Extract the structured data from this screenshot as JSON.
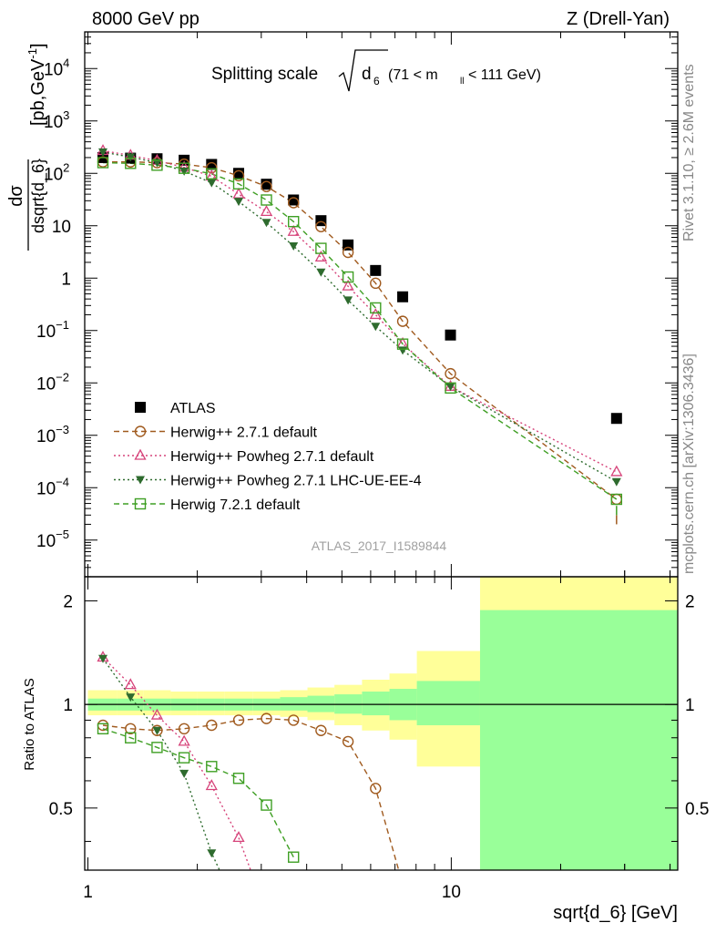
{
  "header": {
    "left": "8000 GeV pp",
    "right": "Z (Drell-Yan)"
  },
  "side": {
    "rivet": "Rivet 3.1.10, ≥ 2.6M events",
    "mcplots": "mcplots.cern.ch [arXiv:1306.3436]"
  },
  "chart_data": [
    {
      "type": "scatter",
      "panel": "main",
      "title_main": "Splitting scale",
      "title_var": "d",
      "title_sub": "6",
      "title_cut": "(71 < m",
      "title_cut_sub": "ll",
      "title_cut_end": " < 111 GeV)",
      "ylabel_num": "dσ",
      "ylabel_den": "dsqrt{d_6}",
      "ylabel_unit": "[pb,GeV",
      "ylabel_exp": "-1",
      "ylabel_end": "]",
      "analysis_id": "ATLAS_2017_I1589844",
      "x_scale": "log",
      "y_scale": "log",
      "xlim": [
        0.98,
        42
      ],
      "ylim_exp": [
        -5.7,
        4.7
      ],
      "y_ticks": [
        {
          "mant": "10",
          "exp": "4",
          "v": 4
        },
        {
          "mant": "10",
          "exp": "3",
          "v": 3
        },
        {
          "mant": "10",
          "exp": "2",
          "v": 2
        },
        {
          "mant": "10",
          "exp": "",
          "v": 1
        },
        {
          "mant": "1",
          "exp": "",
          "v": 0
        },
        {
          "mant": "10",
          "exp": "−1",
          "v": -1
        },
        {
          "mant": "10",
          "exp": "−2",
          "v": -2
        },
        {
          "mant": "10",
          "exp": "−3",
          "v": -3
        },
        {
          "mant": "10",
          "exp": "−4",
          "v": -4
        },
        {
          "mant": "10",
          "exp": "−5",
          "v": -5
        }
      ],
      "legend_position": "bottom-left",
      "series": [
        {
          "name": "ATLAS",
          "marker": "square-filled",
          "color": "#000000",
          "x": [
            1.1,
            1.31,
            1.55,
            1.84,
            2.19,
            2.6,
            3.1,
            3.68,
            4.38,
            5.2,
            6.19,
            7.35,
            9.95,
            28.5
          ],
          "y": [
            200,
            195,
            190,
            178,
            148,
            100,
            62,
            31,
            12.5,
            4.3,
            1.4,
            0.44,
            0.082,
            0.0021
          ]
        },
        {
          "name": "Herwig++ 2.7.1 default",
          "marker": "circle-open",
          "line": "dashed",
          "color": "#a05a1e",
          "x": [
            1.1,
            1.31,
            1.55,
            1.84,
            2.19,
            2.6,
            3.1,
            3.68,
            4.38,
            5.2,
            6.19,
            7.35,
            9.95,
            28.5
          ],
          "y": [
            165,
            165,
            160,
            150,
            128,
            90,
            56,
            27.5,
            9.6,
            3.1,
            0.8,
            0.15,
            0.015,
            6e-05
          ]
        },
        {
          "name": "Herwig++ Powheg 2.7.1 default",
          "marker": "triangle-up-open",
          "line": "dotted",
          "color": "#d6437a",
          "x": [
            1.1,
            1.31,
            1.55,
            1.84,
            2.19,
            2.6,
            3.1,
            3.68,
            4.38,
            5.2,
            6.19,
            7.35,
            9.95,
            28.5
          ],
          "y": [
            270,
            220,
            175,
            130,
            88,
            40,
            18.5,
            7.7,
            2.5,
            0.7,
            0.2,
            0.056,
            0.0085,
            0.0002
          ]
        },
        {
          "name": "Herwig++ Powheg 2.7.1 LHC-UE-EE-4",
          "marker": "triangle-down-filled",
          "line": "dotted",
          "color": "#2e6b2e",
          "x": [
            1.1,
            1.31,
            1.55,
            1.84,
            2.19,
            2.6,
            3.1,
            3.68,
            4.38,
            5.2,
            6.19,
            7.35,
            9.95,
            28.5
          ],
          "y": [
            255,
            205,
            160,
            110,
            66,
            29,
            11.5,
            4.1,
            1.3,
            0.38,
            0.12,
            0.042,
            0.0085,
            0.00013
          ]
        },
        {
          "name": "Herwig 7.2.1 default",
          "marker": "square-open",
          "line": "dashed",
          "color": "#3f9f24",
          "x": [
            1.1,
            1.31,
            1.55,
            1.84,
            2.19,
            2.6,
            3.1,
            3.68,
            4.38,
            5.2,
            6.19,
            7.35,
            9.95,
            28.5
          ],
          "y": [
            160,
            155,
            143,
            125,
            98,
            63,
            31,
            12,
            3.7,
            1.05,
            0.27,
            0.055,
            0.008,
            6e-05
          ]
        }
      ]
    },
    {
      "type": "line",
      "panel": "ratio",
      "ylabel": "Ratio to ATLAS",
      "xlabel": "sqrt{d_6} [GeV]",
      "x_scale": "log",
      "y_scale": "log",
      "xlim": [
        0.98,
        42
      ],
      "ylim": [
        0.33,
        2.35
      ],
      "y_ticks": [
        {
          "label": "0.5",
          "v": 0.5
        },
        {
          "label": "1",
          "v": 1
        },
        {
          "label": "2",
          "v": 2
        }
      ],
      "x_ticks": [
        {
          "label": "1",
          "v": 1
        },
        {
          "label": "10",
          "v": 10
        }
      ],
      "bands": {
        "edges": [
          1.0,
          1.2,
          1.42,
          1.69,
          2.0,
          2.38,
          2.84,
          3.38,
          4.02,
          4.77,
          5.68,
          6.76,
          8.04,
          12.0,
          42.0
        ],
        "stat_lo": [
          0.96,
          0.96,
          0.96,
          0.96,
          0.96,
          0.96,
          0.96,
          0.96,
          0.95,
          0.94,
          0.93,
          0.9,
          0.87,
          0.33
        ],
        "stat_hi": [
          1.04,
          1.04,
          1.04,
          1.04,
          1.04,
          1.04,
          1.04,
          1.05,
          1.06,
          1.07,
          1.09,
          1.11,
          1.17,
          1.88
        ],
        "total_lo": [
          0.93,
          0.93,
          0.93,
          0.93,
          0.93,
          0.93,
          0.93,
          0.92,
          0.9,
          0.87,
          0.84,
          0.79,
          0.66,
          0.33
        ],
        "total_hi": [
          1.1,
          1.1,
          1.1,
          1.09,
          1.09,
          1.09,
          1.09,
          1.1,
          1.12,
          1.14,
          1.18,
          1.23,
          1.43,
          2.35
        ],
        "total_color": "#ffff99",
        "stat_color": "#99ff99"
      },
      "series": [
        {
          "name": "Herwig++ 2.7.1 default",
          "x": [
            1.1,
            1.31,
            1.55,
            1.84,
            2.19,
            2.6,
            3.1,
            3.68,
            4.38,
            5.2,
            6.19,
            7.35
          ],
          "y": [
            0.87,
            0.85,
            0.84,
            0.85,
            0.87,
            0.9,
            0.91,
            0.9,
            0.84,
            0.78,
            0.57,
            0.3
          ]
        },
        {
          "name": "Herwig++ Powheg 2.7.1 default",
          "x": [
            1.1,
            1.31,
            1.55,
            1.84,
            2.19,
            2.6,
            2.9
          ],
          "y": [
            1.37,
            1.14,
            0.93,
            0.78,
            0.58,
            0.41,
            0.3
          ]
        },
        {
          "name": "Herwig++ Powheg 2.7.1 LHC-UE-EE-4",
          "x": [
            1.1,
            1.31,
            1.55,
            1.84,
            2.19,
            2.4
          ],
          "y": [
            1.36,
            1.05,
            0.84,
            0.63,
            0.37,
            0.3
          ]
        },
        {
          "name": "Herwig 7.2.1 default",
          "x": [
            1.1,
            1.31,
            1.55,
            1.84,
            2.19,
            2.6,
            3.1,
            3.68
          ],
          "y": [
            0.85,
            0.8,
            0.75,
            0.7,
            0.66,
            0.61,
            0.51,
            0.36
          ]
        }
      ]
    }
  ]
}
